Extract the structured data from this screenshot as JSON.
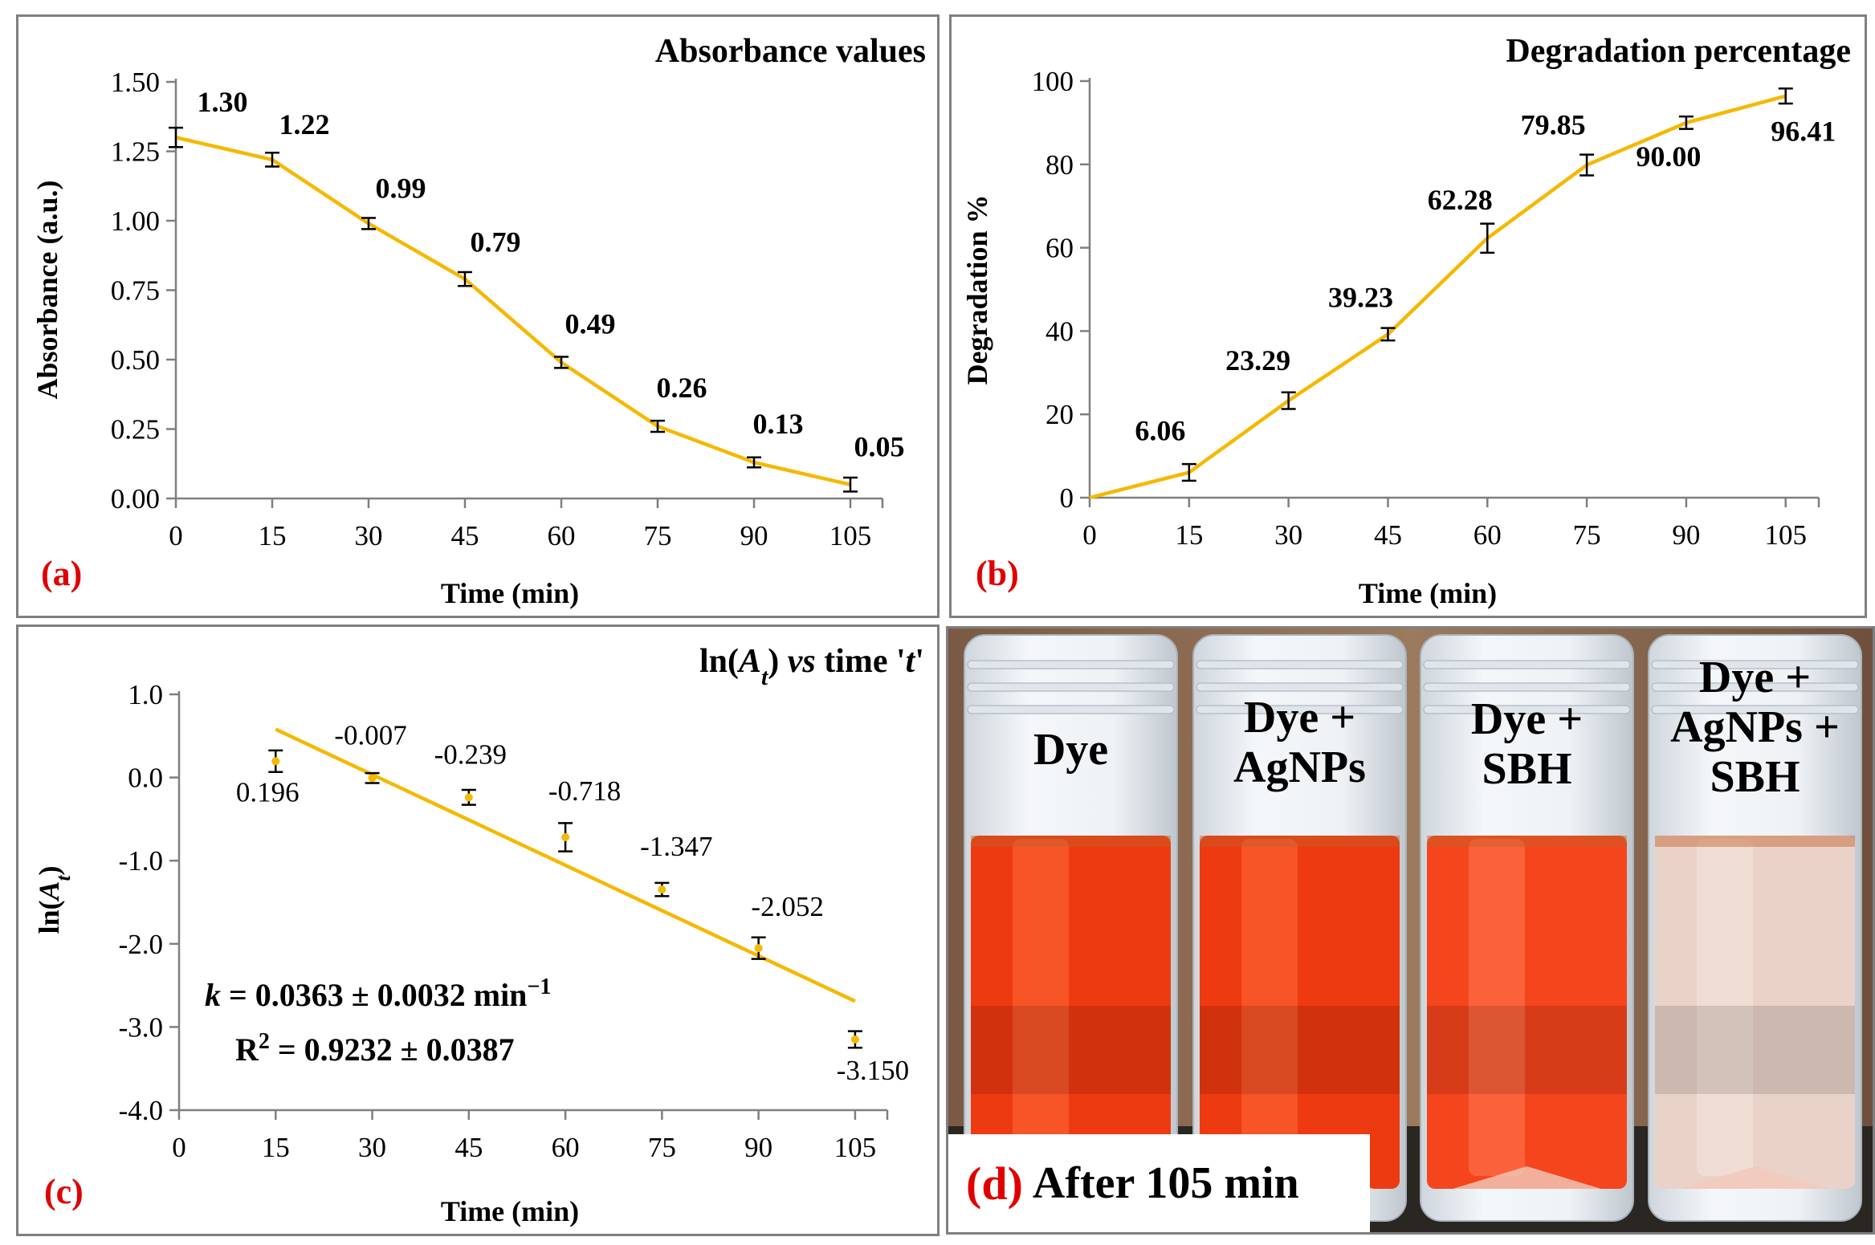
{
  "colors": {
    "line": "#f5b800",
    "axis": "#7f7f7f",
    "panel_letter": "#e00000",
    "frame": "#7f7f7f"
  },
  "chart_data": [
    {
      "id": "a",
      "panel_letter": "(a)",
      "type": "line",
      "title": "Absorbance values",
      "xlabel": "Time (min)",
      "ylabel": "Absorbance (a.u.)",
      "x": [
        0,
        15,
        30,
        45,
        60,
        75,
        90,
        105
      ],
      "y": [
        1.3,
        1.22,
        0.99,
        0.79,
        0.49,
        0.26,
        0.13,
        0.05
      ],
      "error": [
        0.035,
        0.025,
        0.02,
        0.025,
        0.02,
        0.02,
        0.018,
        0.025
      ],
      "labels": [
        "1.30",
        "1.22",
        "0.99",
        "0.79",
        "0.49",
        "0.26",
        "0.13",
        "0.05"
      ],
      "xlim": [
        0,
        110
      ],
      "ylim": [
        0,
        1.5
      ],
      "xticks": [
        "0",
        "15",
        "30",
        "45",
        "60",
        "75",
        "90",
        "105"
      ],
      "yticks": [
        "0.00",
        "0.25",
        "0.50",
        "0.75",
        "1.00",
        "1.25",
        "1.50"
      ]
    },
    {
      "id": "b",
      "panel_letter": "(b)",
      "type": "line",
      "title": "Degradation percentage",
      "xlabel": "Time (min)",
      "ylabel": "Degradation %",
      "x": [
        0,
        15,
        30,
        45,
        60,
        75,
        90,
        105
      ],
      "y": [
        0,
        6.06,
        23.29,
        39.23,
        62.28,
        79.85,
        90.0,
        96.41
      ],
      "error": [
        0,
        2.0,
        2.0,
        1.5,
        3.5,
        2.5,
        1.5,
        1.8
      ],
      "labels": [
        "",
        "6.06",
        "23.29",
        "39.23",
        "62.28",
        "79.85",
        "90.00",
        "96.41"
      ],
      "xlim": [
        0,
        110
      ],
      "ylim": [
        0,
        100
      ],
      "xticks": [
        "0",
        "15",
        "30",
        "45",
        "60",
        "75",
        "90",
        "105"
      ],
      "yticks": [
        "0",
        "20",
        "40",
        "60",
        "80",
        "100"
      ]
    },
    {
      "id": "c",
      "panel_letter": "(c)",
      "type": "scatter",
      "title_parts": [
        "ln(",
        "A",
        "t",
        ") ",
        "vs",
        " time '",
        "t",
        "'"
      ],
      "xlabel": "Time (min)",
      "ylabel_parts": [
        "ln(",
        "A",
        "t",
        ")"
      ],
      "x": [
        15,
        30,
        45,
        60,
        75,
        90,
        105
      ],
      "y": [
        0.196,
        -0.007,
        -0.239,
        -0.718,
        -1.347,
        -2.052,
        -3.15
      ],
      "error": [
        0.13,
        0.06,
        0.09,
        0.17,
        0.08,
        0.13,
        0.1
      ],
      "labels": [
        "0.196",
        "-0.007",
        "-0.239",
        "-0.718",
        "-1.347",
        "-2.052",
        "-3.150"
      ],
      "fit": {
        "x": [
          15,
          105
        ],
        "y": [
          0.58,
          -2.69
        ]
      },
      "k_parts": [
        "k",
        " = 0.0363 ± 0.0032 min",
        "−1"
      ],
      "r2_parts": [
        "R",
        "2",
        " = 0.9232 ± 0.0387"
      ],
      "xlim": [
        0,
        110
      ],
      "ylim": [
        -4,
        1
      ],
      "xticks": [
        "0",
        "15",
        "30",
        "45",
        "60",
        "75",
        "90",
        "105"
      ],
      "yticks": [
        "-4.0",
        "-3.0",
        "-2.0",
        "-1.0",
        "0.0",
        "1.0"
      ]
    }
  ],
  "photo": {
    "panel_letter": "(d)",
    "caption": "After 105 min",
    "vials": [
      {
        "lines": [
          "Dye"
        ],
        "liquid": "#ee3a10",
        "liquid_light": "#ff6a3a"
      },
      {
        "lines": [
          "Dye +",
          "AgNPs"
        ],
        "liquid": "#ee3a10",
        "liquid_light": "#ff6a3a"
      },
      {
        "lines": [
          "Dye +",
          "SBH"
        ],
        "liquid": "#f5451c",
        "liquid_light": "#ff7a55"
      },
      {
        "lines": [
          "Dye +",
          "AgNPs +",
          "SBH"
        ],
        "liquid": "#e9d2c8",
        "liquid_light": "#f4e6df"
      }
    ]
  }
}
